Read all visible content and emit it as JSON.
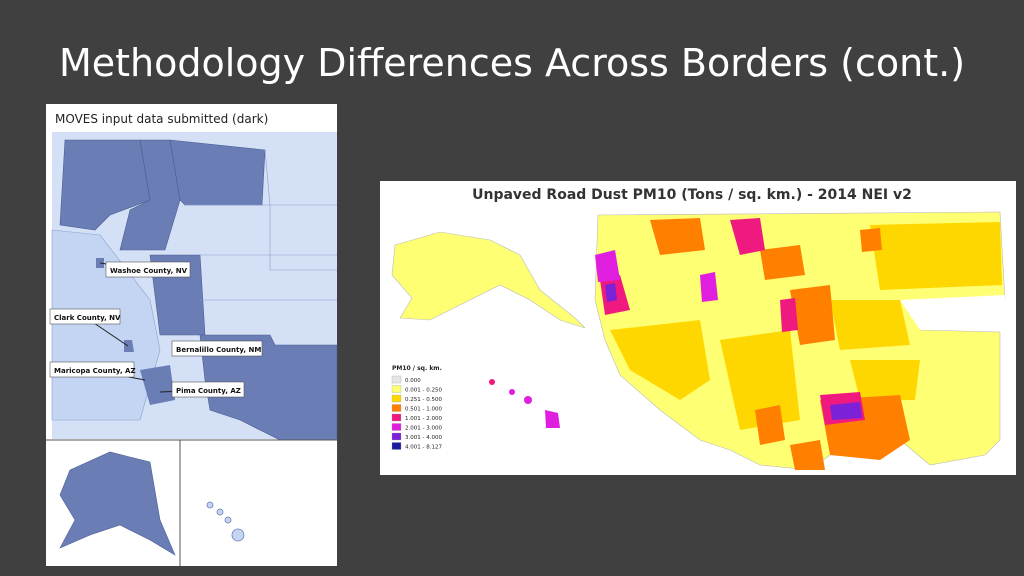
{
  "slide": {
    "title": "Methodology Differences Across Borders (cont.)"
  },
  "left_map": {
    "caption": "MOVES input data submitted (dark)",
    "labels": [
      "Washoe County, NV",
      "Clark County, NV",
      "Bernalillo County, NM",
      "Maricopa County, AZ",
      "Pima County, AZ"
    ]
  },
  "right_map": {
    "title": "Unpaved Road Dust PM10 (Tons / sq. km.) - 2014 NEI v2",
    "legend": {
      "title": "PM10 / sq. km.",
      "items": [
        {
          "label": "0.000",
          "color": "#e6e6e6"
        },
        {
          "label": "0.001 - 0.250",
          "color": "#ffff73"
        },
        {
          "label": "0.251 - 0.500",
          "color": "#ffd700"
        },
        {
          "label": "0.501 - 1.000",
          "color": "#ff7f00"
        },
        {
          "label": "1.001 - 2.000",
          "color": "#f0197f"
        },
        {
          "label": "2.001 - 3.000",
          "color": "#e01ee0"
        },
        {
          "label": "3.001 - 4.000",
          "color": "#7b22d8"
        },
        {
          "label": "4.001 - 8.127",
          "color": "#1a1a9c"
        }
      ]
    }
  }
}
